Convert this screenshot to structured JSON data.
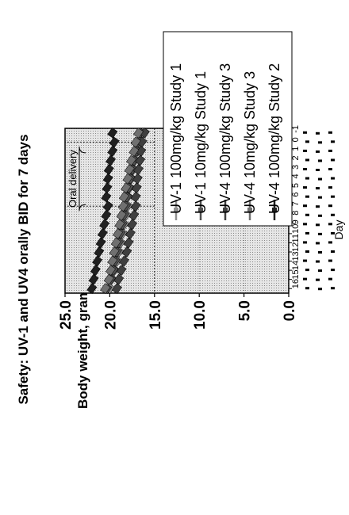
{
  "chart_data": {
    "type": "line",
    "title": "Safety: UV-1 and UV4 orally BID for 7 days",
    "xlabel": "Day",
    "ylabel": "Body weight, gram",
    "ylim": [
      0,
      25
    ],
    "yticks": [
      "0.0",
      "5.0",
      "10.0",
      "15.0",
      "20.0",
      "25.0"
    ],
    "xticks": [
      "-1",
      "0",
      "1",
      "2",
      "3",
      "4",
      "5",
      "6",
      "7",
      "8",
      "9",
      "10",
      "11",
      "12",
      "13",
      "14",
      "15",
      "16"
    ],
    "x": [
      -1,
      0,
      1,
      2,
      3,
      4,
      5,
      6,
      7,
      8,
      9,
      10,
      11,
      12,
      13,
      14,
      15,
      16
    ],
    "grid": true,
    "reference_lines": {
      "y": 15,
      "x": [
        0,
        7
      ]
    },
    "annotation": {
      "text": "Oral delivery",
      "x_start": 1,
      "x_end": 7
    },
    "legend_position": "right",
    "series": [
      {
        "name": "UV-1 100mg/kg Study 1",
        "color": "#909090",
        "values": [
          16.3,
          16.6,
          16.9,
          17.2,
          17.4,
          17.6,
          17.8,
          18.0,
          18.0,
          18.2,
          18.4,
          18.6,
          18.8,
          19.0,
          19.2,
          19.5,
          19.8,
          20.0
        ]
      },
      {
        "name": "UV-1 10mg/kg Study 1",
        "color": "#505050",
        "values": [
          16.6,
          16.9,
          17.0,
          17.3,
          17.5,
          17.7,
          17.9,
          18.1,
          18.2,
          18.4,
          18.6,
          18.8,
          19.0,
          19.2,
          19.4,
          19.6,
          19.9,
          20.3
        ]
      },
      {
        "name": "UV-4 100mg/kg Study 3",
        "color": "#404040",
        "values": [
          16.1,
          16.4,
          16.5,
          16.6,
          16.8,
          16.9,
          17.0,
          17.1,
          17.1,
          17.3,
          17.5,
          17.7,
          17.9,
          18.1,
          18.4,
          18.7,
          19.0,
          19.2
        ]
      },
      {
        "name": "UV-4 10mg/kg Study 3",
        "color": "#707070",
        "values": [
          16.8,
          17.1,
          17.3,
          17.6,
          17.8,
          18.0,
          18.2,
          18.4,
          18.5,
          18.7,
          18.9,
          19.1,
          19.3,
          19.5,
          19.7,
          19.9,
          20.1,
          20.5
        ]
      },
      {
        "name": "UV-4 100mg/kg Study 2",
        "color": "#202020",
        "values": [
          19.7,
          19.5,
          19.7,
          19.9,
          20.1,
          20.2,
          20.3,
          20.4,
          20.2,
          20.4,
          20.6,
          20.8,
          21.0,
          21.2,
          21.4,
          21.6,
          21.8,
          22.0
        ]
      }
    ]
  }
}
